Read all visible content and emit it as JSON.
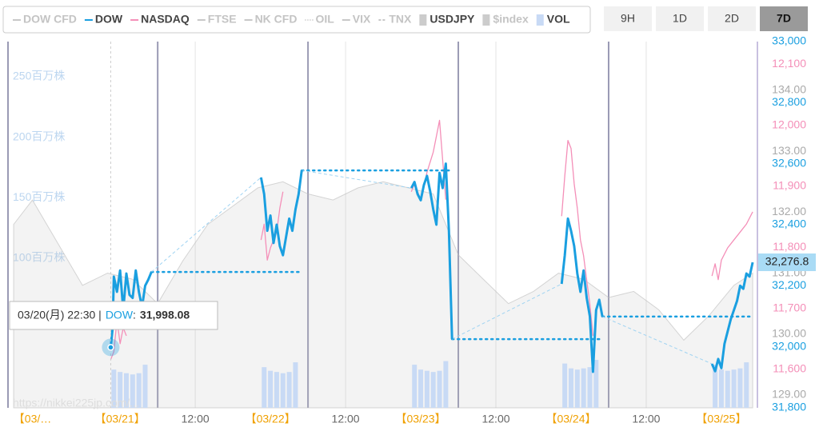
{
  "chart_data": {
    "type": "line",
    "legend": [
      {
        "name": "DOW CFD",
        "color": "#c8c8c8",
        "style": "line",
        "active": false
      },
      {
        "name": "DOW",
        "color": "#1a9fe0",
        "style": "line",
        "active": true
      },
      {
        "name": "NASDAQ",
        "color": "#f48fb8",
        "style": "line",
        "active": true
      },
      {
        "name": "FTSE",
        "color": "#c8c8c8",
        "style": "line",
        "active": false
      },
      {
        "name": "NK CFD",
        "color": "#c8c8c8",
        "style": "line",
        "active": false
      },
      {
        "name": "OIL",
        "color": "#c8c8c8",
        "style": "dotted",
        "active": false
      },
      {
        "name": "VIX",
        "color": "#c8c8c8",
        "style": "line",
        "active": false
      },
      {
        "name": "TNX",
        "color": "#c8c8c8",
        "style": "dashed",
        "active": false
      },
      {
        "name": "USDJPY",
        "color": "#cccccc",
        "style": "box",
        "active": true
      },
      {
        "name": "$index",
        "color": "#cccccc",
        "style": "box",
        "active": false
      },
      {
        "name": "VOL",
        "color": "#c8daf5",
        "style": "box",
        "active": true
      }
    ],
    "ranges": [
      "9H",
      "1D",
      "2D",
      "7D"
    ],
    "active_range": 3,
    "xlim": [
      -17.9,
      101.5
    ],
    "xticks": [
      {
        "value": -14,
        "label": "【03/…"
      },
      {
        "value": 0,
        "label": "【03/21】"
      },
      {
        "value": 12,
        "label": "12:00"
      },
      {
        "value": 24,
        "label": "【03/22】"
      },
      {
        "value": 36,
        "label": "12:00"
      },
      {
        "value": 48,
        "label": "【03/23】"
      },
      {
        "value": 60,
        "label": "12:00"
      },
      {
        "value": 72,
        "label": "【03/24】"
      },
      {
        "value": 84,
        "label": "12:00"
      },
      {
        "value": 96,
        "label": "【03/25】"
      }
    ],
    "session_breaks": [
      6,
      30,
      54,
      78
    ],
    "ylim": [
      31800,
      33000
    ],
    "yticks": [
      {
        "value": 31800,
        "label": "31,800"
      },
      {
        "value": 32000,
        "label": "32,000"
      },
      {
        "value": 32200,
        "label": "32,200"
      },
      {
        "value": 32400,
        "label": "32,400"
      },
      {
        "value": 32600,
        "label": "32,600"
      },
      {
        "value": 32800,
        "label": "32,800"
      },
      {
        "value": 33000,
        "label": "33,000"
      }
    ],
    "y2lim": [
      11537,
      12137
    ],
    "y2ticks": [
      {
        "value": 11600,
        "label": "11,600"
      },
      {
        "value": 11700,
        "label": "11,700"
      },
      {
        "value": 11800,
        "label": "11,800"
      },
      {
        "value": 11900,
        "label": "11,900"
      },
      {
        "value": 12000,
        "label": "12,000"
      },
      {
        "value": 12100,
        "label": "12,100"
      }
    ],
    "y3lim": [
      128.79,
      134.8
    ],
    "y3ticks": [
      {
        "value": 129,
        "label": "129.00"
      },
      {
        "value": 130,
        "label": "130.00"
      },
      {
        "value": 131,
        "label": "131.00"
      },
      {
        "value": 132,
        "label": "132.00"
      },
      {
        "value": 133,
        "label": "133.00"
      },
      {
        "value": 134,
        "label": "134.00"
      }
    ],
    "vol_ylim": [
      -23.6,
      279
    ],
    "vol_yticks": [
      {
        "value": 100,
        "label": "100百万株"
      },
      {
        "value": 150,
        "label": "150百万株"
      },
      {
        "value": 200,
        "label": "200百万株"
      },
      {
        "value": 250,
        "label": "250百万株"
      }
    ],
    "series": [
      {
        "type": "area",
        "axis": "y3",
        "color": "#bbbbbb",
        "x": [
          -17,
          -14,
          -10,
          -6,
          -2,
          2,
          6,
          10,
          14,
          18,
          22,
          26,
          30,
          34,
          38,
          42,
          46,
          50,
          54,
          58,
          62,
          66,
          70,
          74,
          78,
          82,
          86,
          90,
          94,
          98,
          101
        ],
        "values": [
          131.8,
          132.2,
          131.5,
          130.8,
          131.0,
          130.9,
          130.5,
          131.2,
          131.8,
          132.1,
          132.4,
          132.5,
          132.3,
          132.2,
          132.4,
          132.5,
          132.4,
          132.3,
          131.3,
          130.9,
          130.5,
          130.7,
          131.0,
          130.9,
          130.6,
          130.7,
          130.4,
          129.9,
          130.3,
          130.8,
          131.0
        ]
      },
      {
        "type": "bar",
        "axis": "vol",
        "color": "#c8daf5",
        "x": [
          -1,
          0,
          1,
          2,
          3,
          4,
          23,
          24,
          25,
          26,
          27,
          28,
          47,
          48,
          49,
          50,
          51,
          52,
          71,
          72,
          73,
          74,
          75,
          76,
          95,
          96,
          97,
          98,
          99,
          100
        ],
        "values": [
          8,
          6,
          5,
          4,
          5,
          12,
          10,
          7,
          6,
          5,
          6,
          14,
          12,
          8,
          7,
          6,
          7,
          15,
          13,
          9,
          8,
          9,
          10,
          16,
          12,
          8,
          7,
          8,
          9,
          14
        ]
      },
      {
        "type": "line",
        "axis": "y2",
        "color": "#f48fb8",
        "x": [
          -1.5,
          -1,
          -0.5,
          0,
          0.5,
          1,
          10,
          22.5,
          23,
          23.5,
          24,
          24.5,
          25,
          25.5,
          26,
          38,
          46.5,
          47,
          48,
          49,
          50,
          50.5,
          51,
          51.5,
          52,
          62,
          70.5,
          71,
          71.5,
          72,
          72.5,
          73,
          73.5,
          74,
          74.5,
          75,
          75.5,
          86,
          94.5,
          95,
          95.5,
          96,
          97,
          98,
          99,
          100,
          101
        ],
        "values": [
          11616,
          11629,
          11681,
          11642,
          11668,
          11655,
          null,
          11812,
          11838,
          11779,
          11799,
          11812,
          11825,
          11864,
          11891,
          null,
          11891,
          11904,
          11878,
          11923,
          11956,
          11982,
          12008,
          11943,
          11878,
          null,
          11851,
          11917,
          11975,
          11962,
          11904,
          11864,
          11812,
          11786,
          11746,
          11707,
          11655,
          null,
          11753,
          11773,
          11747,
          11779,
          11799,
          11812,
          11825,
          11838,
          11858
        ]
      },
      {
        "type": "line",
        "axis": "y",
        "color": "#1a9fe0",
        "last_label": "32,276.8",
        "x": [
          -1.5,
          -1.2,
          -1,
          -0.5,
          0,
          0.5,
          1,
          1.5,
          2,
          2.5,
          3,
          3.5,
          4,
          4.5,
          5,
          14,
          22.5,
          23,
          23.5,
          24,
          24.5,
          25,
          25.5,
          26,
          26.5,
          27,
          27.5,
          28,
          28.5,
          29,
          38,
          46.5,
          47,
          47.5,
          48,
          48.5,
          49,
          49.5,
          50,
          50.5,
          51,
          51.5,
          52,
          52.5,
          53,
          62,
          70.5,
          71,
          71.5,
          72,
          72.5,
          73,
          73.5,
          74,
          74.5,
          75,
          75.5,
          76,
          76.5,
          77,
          86,
          94.5,
          95,
          95.5,
          96,
          96.5,
          97,
          97.5,
          98,
          98.5,
          99,
          99.5,
          100,
          100.5,
          101
        ],
        "values": [
          31998.08,
          32060,
          32230,
          32180,
          32250,
          32120,
          32240,
          32170,
          32160,
          32250,
          32180,
          32130,
          32200,
          32220,
          32245,
          null,
          32555,
          32500,
          32380,
          32430,
          32340,
          32400,
          32330,
          32300,
          32360,
          32420,
          32380,
          32450,
          32500,
          32578,
          null,
          32520,
          32540,
          32500,
          32480,
          32530,
          32560,
          32510,
          32450,
          32400,
          32570,
          32520,
          32600,
          32380,
          32025,
          null,
          32206,
          32300,
          32420,
          32380,
          32330,
          32240,
          32180,
          32250,
          32160,
          32100,
          31918,
          32120,
          32154,
          32099,
          null,
          31944,
          31920,
          31960,
          31930,
          32010,
          32050,
          32090,
          32120,
          32150,
          32200,
          32190,
          32240,
          32230,
          32276.8
        ]
      }
    ],
    "tooltip": {
      "time": "03/20(月) 22:30 |",
      "series": "DOW",
      "separator": ":",
      "value": "31,998.08"
    },
    "watermark": "https://nikkei225jp.com/..."
  }
}
